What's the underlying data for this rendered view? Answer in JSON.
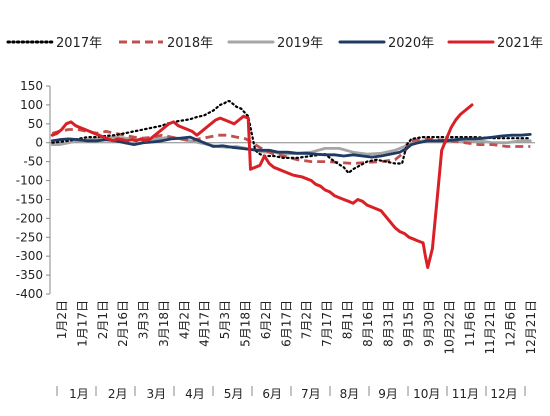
{
  "chart_data": {
    "type": "line",
    "ylim": [
      -400,
      150
    ],
    "yticks": [
      150,
      100,
      50,
      0,
      -50,
      -100,
      -150,
      -200,
      -250,
      -300,
      -350,
      -400
    ],
    "x_dates": [
      "1月2日",
      "1月17日",
      "2月1日",
      "2月16日",
      "3月3日",
      "3月18日",
      "4月2日",
      "4月17日",
      "5月3日",
      "5月18日",
      "6月2日",
      "6月17日",
      "7月2日",
      "7月17日",
      "8月1日",
      "8月16日",
      "8月31日",
      "9月15日",
      "9月30日",
      "10月22日",
      "11月6日",
      "11月21日",
      "12月6日",
      "12月21日"
    ],
    "x_months": [
      "1月",
      "2月",
      "3月",
      "4月",
      "5月",
      "6月",
      "7月",
      "8月",
      "9月",
      "10月",
      "11月",
      "12月"
    ],
    "legend_position": "top",
    "series": [
      {
        "name": "2017年",
        "color": "#000000",
        "style": "dotted",
        "points": [
          [
            1,
            0
          ],
          [
            4,
            2
          ],
          [
            8,
            5
          ],
          [
            12,
            10
          ],
          [
            16,
            15
          ],
          [
            20,
            15
          ],
          [
            24,
            18
          ],
          [
            28,
            20
          ],
          [
            32,
            25
          ],
          [
            36,
            30
          ],
          [
            40,
            35
          ],
          [
            44,
            40
          ],
          [
            48,
            45
          ],
          [
            50,
            50
          ],
          [
            53,
            55
          ],
          [
            56,
            58
          ],
          [
            60,
            62
          ],
          [
            63,
            68
          ],
          [
            66,
            72
          ],
          [
            70,
            85
          ],
          [
            73,
            100
          ],
          [
            75,
            105
          ],
          [
            76,
            110
          ],
          [
            77,
            110
          ],
          [
            78,
            105
          ],
          [
            80,
            95
          ],
          [
            82,
            90
          ],
          [
            85,
            70
          ],
          [
            88,
            -20
          ],
          [
            90,
            -30
          ],
          [
            92,
            -35
          ],
          [
            96,
            -35
          ],
          [
            100,
            -40
          ],
          [
            106,
            -40
          ],
          [
            112,
            -35
          ],
          [
            118,
            -30
          ],
          [
            122,
            -50
          ],
          [
            126,
            -65
          ],
          [
            128,
            -80
          ],
          [
            130,
            -70
          ],
          [
            133,
            -60
          ],
          [
            136,
            -50
          ],
          [
            140,
            -45
          ],
          [
            144,
            -50
          ],
          [
            148,
            -55
          ],
          [
            151,
            -55
          ],
          [
            153,
            -5
          ],
          [
            155,
            10
          ],
          [
            160,
            15
          ],
          [
            168,
            15
          ],
          [
            175,
            15
          ],
          [
            182,
            15
          ],
          [
            190,
            12
          ],
          [
            198,
            12
          ],
          [
            206,
            12
          ]
        ]
      },
      {
        "name": "2018年",
        "color": "#c0504d",
        "style": "dashed",
        "points": [
          [
            1,
            25
          ],
          [
            4,
            30
          ],
          [
            8,
            35
          ],
          [
            12,
            35
          ],
          [
            16,
            30
          ],
          [
            20,
            25
          ],
          [
            24,
            30
          ],
          [
            28,
            25
          ],
          [
            32,
            20
          ],
          [
            36,
            15
          ],
          [
            40,
            12
          ],
          [
            44,
            15
          ],
          [
            48,
            20
          ],
          [
            52,
            15
          ],
          [
            56,
            10
          ],
          [
            60,
            5
          ],
          [
            64,
            10
          ],
          [
            68,
            15
          ],
          [
            72,
            20
          ],
          [
            76,
            20
          ],
          [
            80,
            15
          ],
          [
            84,
            10
          ],
          [
            88,
            -5
          ],
          [
            92,
            -20
          ],
          [
            96,
            -30
          ],
          [
            100,
            -35
          ],
          [
            106,
            -45
          ],
          [
            112,
            -50
          ],
          [
            118,
            -50
          ],
          [
            124,
            -52
          ],
          [
            130,
            -55
          ],
          [
            136,
            -52
          ],
          [
            142,
            -50
          ],
          [
            148,
            -45
          ],
          [
            152,
            -25
          ],
          [
            155,
            5
          ],
          [
            160,
            10
          ],
          [
            166,
            8
          ],
          [
            172,
            5
          ],
          [
            178,
            0
          ],
          [
            184,
            -5
          ],
          [
            190,
            -5
          ],
          [
            196,
            -10
          ],
          [
            202,
            -10
          ],
          [
            206,
            -10
          ]
        ]
      },
      {
        "name": "2019年",
        "color": "#a5a5a5",
        "style": "solid",
        "points": [
          [
            1,
            -5
          ],
          [
            4,
            -5
          ],
          [
            8,
            0
          ],
          [
            12,
            5
          ],
          [
            16,
            8
          ],
          [
            20,
            10
          ],
          [
            24,
            12
          ],
          [
            28,
            15
          ],
          [
            32,
            12
          ],
          [
            36,
            10
          ],
          [
            40,
            5
          ],
          [
            44,
            8
          ],
          [
            48,
            12
          ],
          [
            52,
            15
          ],
          [
            56,
            10
          ],
          [
            60,
            5
          ],
          [
            64,
            0
          ],
          [
            68,
            -5
          ],
          [
            72,
            -10
          ],
          [
            76,
            -12
          ],
          [
            80,
            -10
          ],
          [
            84,
            -15
          ],
          [
            88,
            -20
          ],
          [
            92,
            -25
          ],
          [
            96,
            -25
          ],
          [
            100,
            -30
          ],
          [
            106,
            -28
          ],
          [
            112,
            -25
          ],
          [
            118,
            -15
          ],
          [
            124,
            -15
          ],
          [
            130,
            -25
          ],
          [
            136,
            -30
          ],
          [
            142,
            -28
          ],
          [
            148,
            -20
          ],
          [
            152,
            -10
          ],
          [
            155,
            0
          ],
          [
            160,
            5
          ],
          [
            166,
            5
          ],
          [
            172,
            8
          ],
          [
            178,
            5
          ],
          [
            184,
            5
          ],
          [
            190,
            0
          ],
          [
            196,
            0
          ],
          [
            202,
            5
          ],
          [
            206,
            5
          ]
        ]
      },
      {
        "name": "2020年",
        "color": "#1f3b64",
        "style": "solid",
        "points": [
          [
            1,
            5
          ],
          [
            4,
            8
          ],
          [
            8,
            10
          ],
          [
            12,
            8
          ],
          [
            16,
            5
          ],
          [
            20,
            5
          ],
          [
            24,
            8
          ],
          [
            28,
            5
          ],
          [
            32,
            0
          ],
          [
            36,
            -5
          ],
          [
            40,
            0
          ],
          [
            44,
            2
          ],
          [
            48,
            5
          ],
          [
            52,
            10
          ],
          [
            56,
            12
          ],
          [
            60,
            15
          ],
          [
            62,
            10
          ],
          [
            66,
            0
          ],
          [
            70,
            -10
          ],
          [
            74,
            -8
          ],
          [
            78,
            -12
          ],
          [
            82,
            -15
          ],
          [
            86,
            -18
          ],
          [
            90,
            -20
          ],
          [
            94,
            -20
          ],
          [
            98,
            -25
          ],
          [
            102,
            -25
          ],
          [
            106,
            -28
          ],
          [
            110,
            -28
          ],
          [
            114,
            -30
          ],
          [
            118,
            -32
          ],
          [
            122,
            -32
          ],
          [
            126,
            -35
          ],
          [
            130,
            -32
          ],
          [
            134,
            -35
          ],
          [
            138,
            -38
          ],
          [
            142,
            -35
          ],
          [
            146,
            -30
          ],
          [
            150,
            -25
          ],
          [
            153,
            -15
          ],
          [
            155,
            -5
          ],
          [
            158,
            0
          ],
          [
            162,
            5
          ],
          [
            166,
            5
          ],
          [
            170,
            5
          ],
          [
            174,
            8
          ],
          [
            178,
            10
          ],
          [
            182,
            10
          ],
          [
            186,
            12
          ],
          [
            190,
            15
          ],
          [
            194,
            18
          ],
          [
            198,
            20
          ],
          [
            202,
            20
          ],
          [
            206,
            22
          ]
        ]
      },
      {
        "name": "2021年",
        "color": "#d92027",
        "style": "solid",
        "points": [
          [
            1,
            20
          ],
          [
            3,
            25
          ],
          [
            5,
            35
          ],
          [
            7,
            50
          ],
          [
            9,
            55
          ],
          [
            11,
            45
          ],
          [
            13,
            40
          ],
          [
            15,
            35
          ],
          [
            17,
            30
          ],
          [
            19,
            25
          ],
          [
            21,
            20
          ],
          [
            23,
            15
          ],
          [
            25,
            10
          ],
          [
            27,
            5
          ],
          [
            29,
            10
          ],
          [
            31,
            8
          ],
          [
            33,
            5
          ],
          [
            35,
            8
          ],
          [
            37,
            5
          ],
          [
            39,
            10
          ],
          [
            41,
            5
          ],
          [
            43,
            10
          ],
          [
            45,
            20
          ],
          [
            47,
            30
          ],
          [
            49,
            40
          ],
          [
            51,
            50
          ],
          [
            53,
            55
          ],
          [
            55,
            45
          ],
          [
            57,
            40
          ],
          [
            59,
            35
          ],
          [
            61,
            30
          ],
          [
            63,
            20
          ],
          [
            65,
            30
          ],
          [
            67,
            40
          ],
          [
            69,
            50
          ],
          [
            71,
            60
          ],
          [
            73,
            65
          ],
          [
            75,
            60
          ],
          [
            77,
            55
          ],
          [
            79,
            50
          ],
          [
            81,
            60
          ],
          [
            83,
            70
          ],
          [
            85,
            65
          ],
          [
            86,
            -70
          ],
          [
            88,
            -65
          ],
          [
            90,
            -60
          ],
          [
            92,
            -35
          ],
          [
            94,
            -55
          ],
          [
            96,
            -65
          ],
          [
            98,
            -70
          ],
          [
            100,
            -75
          ],
          [
            102,
            -80
          ],
          [
            104,
            -85
          ],
          [
            106,
            -88
          ],
          [
            108,
            -90
          ],
          [
            110,
            -95
          ],
          [
            112,
            -100
          ],
          [
            114,
            -110
          ],
          [
            116,
            -115
          ],
          [
            118,
            -125
          ],
          [
            120,
            -130
          ],
          [
            122,
            -140
          ],
          [
            124,
            -145
          ],
          [
            126,
            -150
          ],
          [
            128,
            -155
          ],
          [
            130,
            -160
          ],
          [
            132,
            -150
          ],
          [
            134,
            -155
          ],
          [
            136,
            -165
          ],
          [
            138,
            -170
          ],
          [
            140,
            -175
          ],
          [
            142,
            -180
          ],
          [
            144,
            -195
          ],
          [
            146,
            -210
          ],
          [
            148,
            -225
          ],
          [
            150,
            -235
          ],
          [
            152,
            -240
          ],
          [
            154,
            -250
          ],
          [
            156,
            -255
          ],
          [
            158,
            -260
          ],
          [
            160,
            -265
          ],
          [
            161,
            -300
          ],
          [
            162,
            -330
          ],
          [
            164,
            -280
          ],
          [
            166,
            -150
          ],
          [
            168,
            -20
          ],
          [
            170,
            10
          ],
          [
            172,
            40
          ],
          [
            174,
            60
          ],
          [
            176,
            75
          ],
          [
            178,
            85
          ],
          [
            180,
            95
          ],
          [
            181,
            100
          ]
        ]
      }
    ]
  }
}
